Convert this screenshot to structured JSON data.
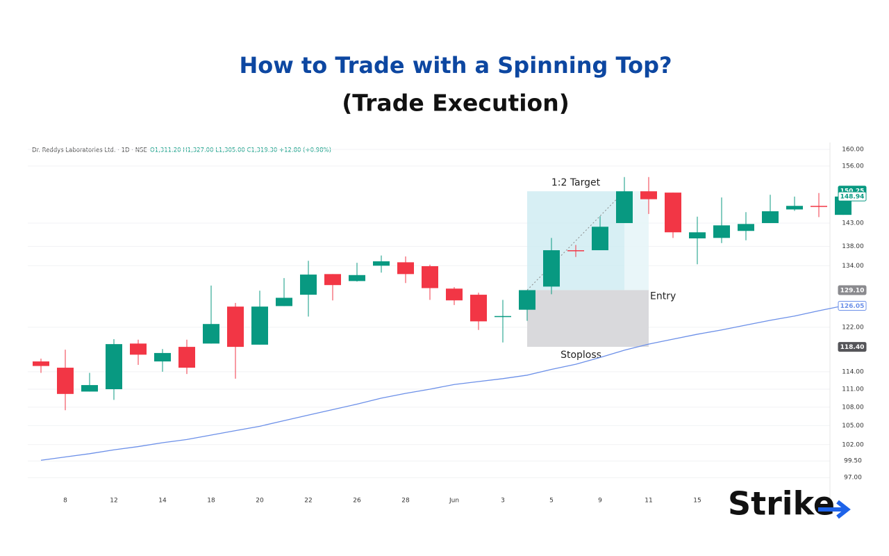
{
  "page": {
    "title": "How to Trade with a Spinning Top?",
    "subtitle": "(Trade Execution)",
    "logo": "Strike"
  },
  "chart_data": {
    "type": "candlestick",
    "header": {
      "symbol": "Dr. Reddys Laboratories Ltd. · 1D · NSE",
      "ohlc": "O1,311.20 H1,327.00 L1,305.00 C1,319.30 +12.80 (+0.98%)"
    },
    "categories": [
      null,
      "8",
      null,
      "12",
      null,
      "14",
      null,
      "18",
      null,
      "20",
      null,
      "22",
      null,
      "26",
      null,
      "28",
      null,
      "Jun",
      null,
      "3",
      null,
      "5",
      null,
      "9",
      null,
      "11",
      null,
      "15",
      null,
      null,
      null,
      null,
      null,
      null
    ],
    "open": [
      115.8,
      114.7,
      110.6,
      111.0,
      119.0,
      115.8,
      118.4,
      119.0,
      125.9,
      118.8,
      126.0,
      128.2,
      132.3,
      130.9,
      134.0,
      134.7,
      133.9,
      129.4,
      128.2,
      124.0,
      125.3,
      129.8,
      137.2,
      137.2,
      143.0,
      150.1,
      149.8,
      139.7,
      139.8,
      141.3,
      143.0,
      146.0,
      146.8,
      144.8
    ],
    "high": [
      116.3,
      117.9,
      113.8,
      119.8,
      119.7,
      118.0,
      119.7,
      130.0,
      126.6,
      129.0,
      131.5,
      135.0,
      132.3,
      134.6,
      136.1,
      135.9,
      134.2,
      129.7,
      128.6,
      127.2,
      129.1,
      139.8,
      138.3,
      144.5,
      153.4,
      153.4,
      149.8,
      144.4,
      148.7,
      145.4,
      149.3,
      148.9,
      149.7,
      150.0
    ],
    "low": [
      113.8,
      107.5,
      110.6,
      109.2,
      115.2,
      114.0,
      113.6,
      119.0,
      112.8,
      118.8,
      126.0,
      124.0,
      127.1,
      130.8,
      132.6,
      130.5,
      127.2,
      126.2,
      121.5,
      119.2,
      123.2,
      128.3,
      135.8,
      137.2,
      143.0,
      145.0,
      139.8,
      134.3,
      138.7,
      139.3,
      143.0,
      145.7,
      144.3,
      144.8
    ],
    "close": [
      115.0,
      110.2,
      111.7,
      118.9,
      117.0,
      117.3,
      114.7,
      122.6,
      118.4,
      125.9,
      127.6,
      132.2,
      130.1,
      132.1,
      134.9,
      132.3,
      129.5,
      127.1,
      123.1,
      124.1,
      129.1,
      137.2,
      137.0,
      142.2,
      150.1,
      148.3,
      141.0,
      141.0,
      142.5,
      142.8,
      145.6,
      146.8,
      146.6,
      148.9
    ],
    "up_color": "#089981",
    "down_color": "#f23645",
    "moving_average": {
      "color": "#6b8fe8",
      "values": [
        99.6,
        100.1,
        100.6,
        101.2,
        101.7,
        102.3,
        102.8,
        103.5,
        104.2,
        104.9,
        105.8,
        106.7,
        107.6,
        108.5,
        109.5,
        110.3,
        111.0,
        111.8,
        112.3,
        112.8,
        113.4,
        114.4,
        115.3,
        116.5,
        117.8,
        118.9,
        119.8,
        120.7,
        121.5,
        122.4,
        123.3,
        124.1,
        125.1,
        126.05
      ]
    },
    "log": true,
    "ylim": [
      92.7,
      161.7
    ],
    "yticks": [
      {
        "value": 160,
        "label": "160.00"
      },
      {
        "value": 156,
        "label": "156.00"
      },
      {
        "value": 143,
        "label": "143.00"
      },
      {
        "value": 138,
        "label": "138.00"
      },
      {
        "value": 134,
        "label": "134.00"
      },
      {
        "value": 122,
        "label": "122.00"
      },
      {
        "value": 114,
        "label": "114.00"
      },
      {
        "value": 111,
        "label": "111.00"
      },
      {
        "value": 108,
        "label": "108.00"
      },
      {
        "value": 105,
        "label": "105.00"
      },
      {
        "value": 102,
        "label": "102.00"
      },
      {
        "value": 99.5,
        "label": "99.50"
      },
      {
        "value": 97,
        "label": "97.00"
      }
    ],
    "grid": true,
    "trade": {
      "target": 150.1,
      "target_label": "1:2 Target",
      "entry": 129.1,
      "entry_label": "Entry",
      "stoploss": 118.4,
      "stoploss_label": "Stoploss",
      "target_color": "#cdebf1",
      "stoploss_color": "#d9d9dc"
    },
    "price_tags": [
      {
        "value": 150.25,
        "label": "150.25",
        "color": "#089981",
        "filled": true
      },
      {
        "value": 148.94,
        "label": "148.94",
        "color": "#089981",
        "filled": false
      },
      {
        "value": 129.1,
        "label": "129.10",
        "color": "#8a8a8e",
        "filled": true
      },
      {
        "value": 126.05,
        "label": "126.05",
        "color": "#6b8fe8",
        "filled": false
      },
      {
        "value": 118.4,
        "label": "118.40",
        "color": "#555559",
        "filled": true
      }
    ]
  }
}
